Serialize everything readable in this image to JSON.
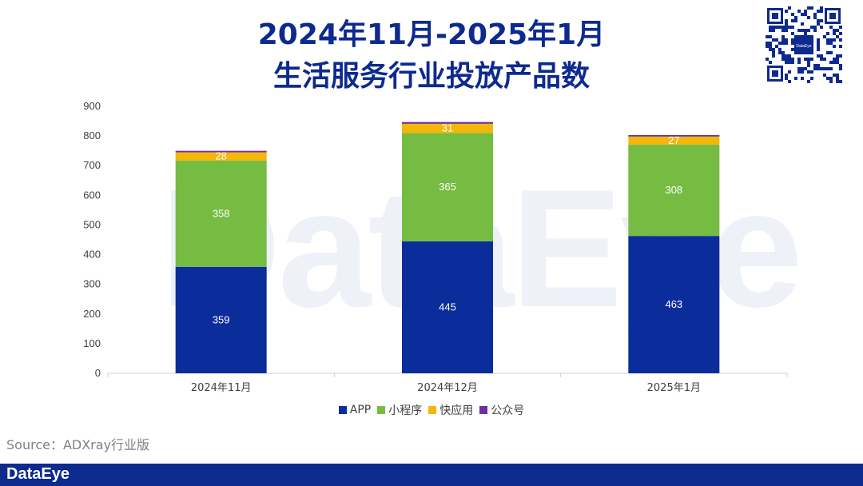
{
  "title_line1": "2024年11月-2025年1月",
  "title_line2": "生活服务行业投放产品数",
  "watermark": "DataEye",
  "source": "Source：ADXray行业版",
  "footer_logo": "DataEye",
  "qr_logo_text": "DataEye",
  "chart_data": {
    "type": "bar",
    "stacked": true,
    "categories": [
      "2024年11月",
      "2024年12月",
      "2025年1月"
    ],
    "series": [
      {
        "name": "APP",
        "color": "#0b2d9c",
        "values": [
          359,
          445,
          463
        ]
      },
      {
        "name": "小程序",
        "color": "#76bc43",
        "values": [
          358,
          365,
          308
        ]
      },
      {
        "name": "快应用",
        "color": "#f3b709",
        "values": [
          28,
          31,
          27
        ]
      },
      {
        "name": "公众号",
        "color": "#7030a0",
        "values": [
          5,
          6,
          5
        ]
      }
    ],
    "data_labels_shown_for": [
      "APP",
      "小程序",
      "快应用"
    ],
    "ylim": [
      0,
      900
    ],
    "yticks": [
      0,
      100,
      200,
      300,
      400,
      500,
      600,
      700,
      800,
      900
    ],
    "legend_position": "bottom",
    "grid": false
  }
}
